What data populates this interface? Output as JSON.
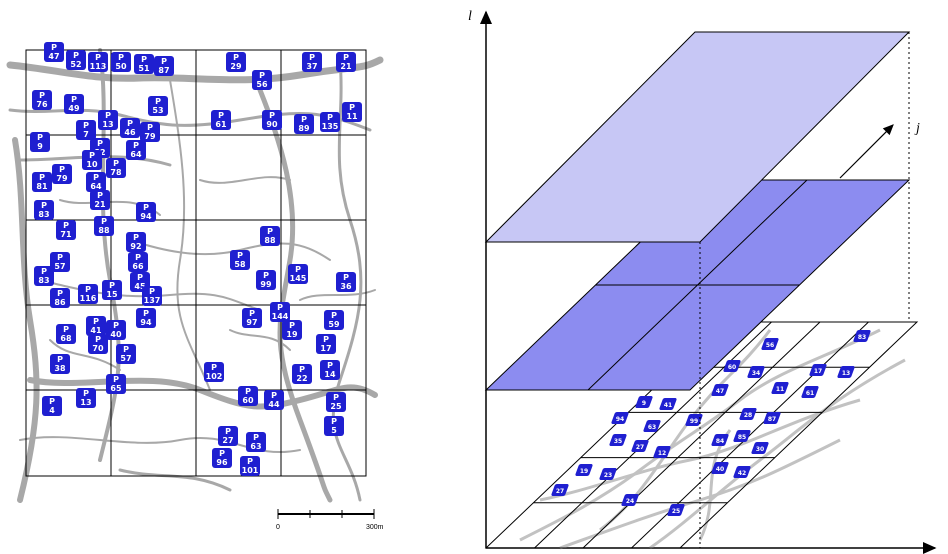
{
  "map": {
    "scale_start": "0",
    "scale_end": "300m",
    "marker_letter": "P",
    "markers": [
      "47",
      "52",
      "113",
      "50",
      "51",
      "87",
      "29",
      "56",
      "37",
      "21",
      "76",
      "49",
      "53",
      "61",
      "90",
      "89",
      "135",
      "11",
      "7",
      "13",
      "46",
      "79",
      "9",
      "82",
      "64",
      "81",
      "10",
      "78",
      "79",
      "64",
      "21",
      "83",
      "71",
      "88",
      "94",
      "92",
      "66",
      "45",
      "88",
      "58",
      "99",
      "145",
      "36",
      "57",
      "83",
      "86",
      "116",
      "15",
      "137",
      "94",
      "97",
      "144",
      "59",
      "68",
      "41",
      "40",
      "70",
      "57",
      "19",
      "17",
      "38",
      "102",
      "22",
      "14",
      "13",
      "65",
      "60",
      "44",
      "25",
      "4",
      "27",
      "63",
      "5",
      "96",
      "101"
    ],
    "marker_color": "#1f1fd0"
  },
  "diagram": {
    "axis_labels": {
      "vertical": "l",
      "depth": "j"
    },
    "top_plane_color": "#c7c7f5",
    "mid_plane_color": "#8c8cf0",
    "markers": [
      "83",
      "17",
      "13",
      "56",
      "60",
      "34",
      "47",
      "11",
      "61",
      "9",
      "41",
      "94",
      "63",
      "99",
      "28",
      "87",
      "84",
      "85",
      "30",
      "35",
      "27",
      "12",
      "19",
      "23",
      "40",
      "42",
      "27",
      "24",
      "25"
    ]
  }
}
